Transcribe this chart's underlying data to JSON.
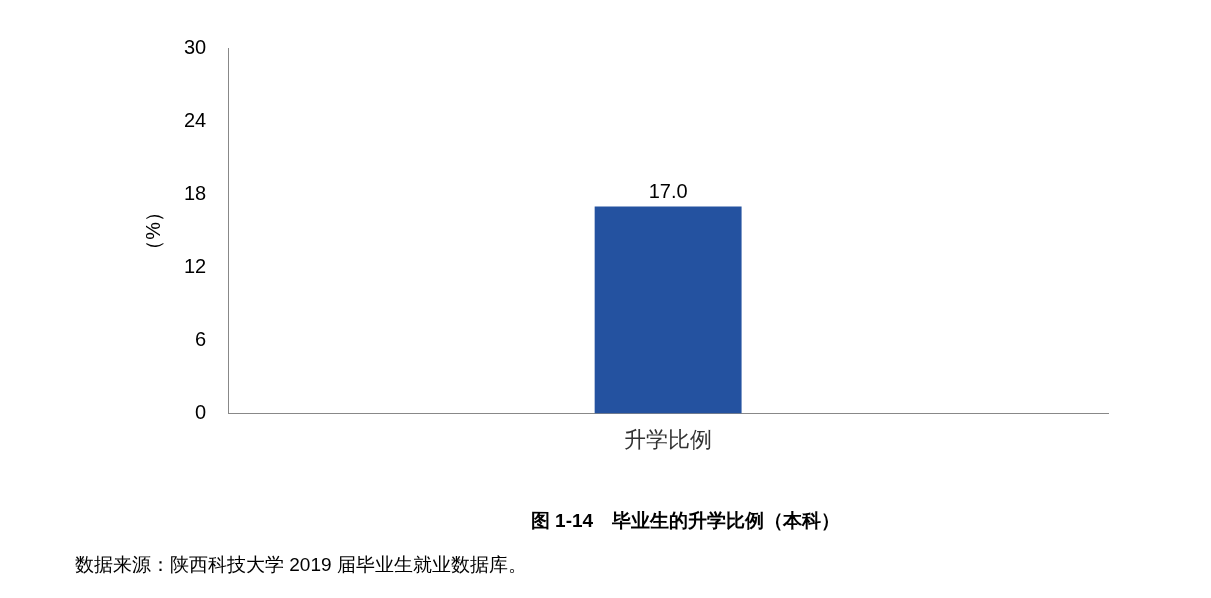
{
  "chart_data": {
    "type": "bar",
    "title": "图 1-14　毕业生的升学比例（本科）",
    "ylabel": "（%）",
    "categories": [
      "升学比例"
    ],
    "series": [
      {
        "color": "#2452a0",
        "values": [
          17.0
        ],
        "value_labels": [
          "17.0"
        ]
      }
    ],
    "ylim": [
      0,
      30
    ],
    "yticks": [
      0,
      6,
      12,
      18,
      24,
      30
    ],
    "grid": false,
    "legend": false,
    "annotations": [
      "数据来源：陕西科技大学 2019 届毕业生就业数据库。"
    ]
  }
}
